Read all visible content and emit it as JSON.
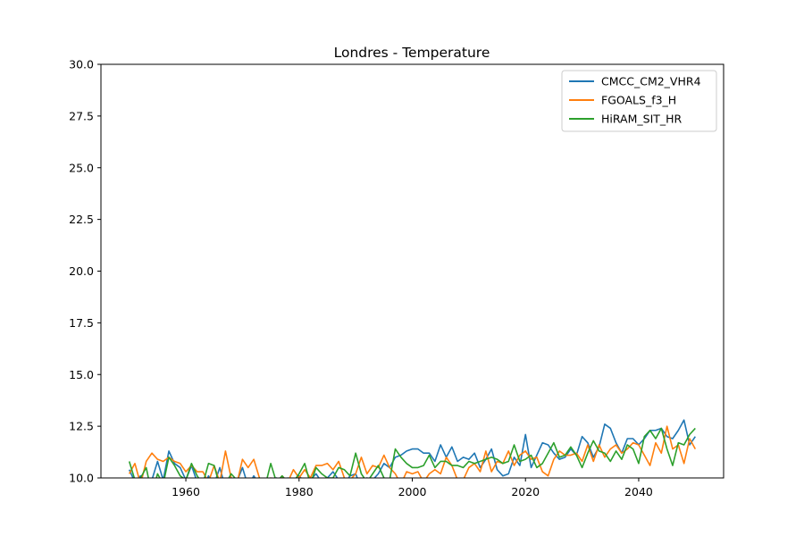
{
  "chart_data": {
    "type": "line",
    "title": "Londres - Temperature",
    "xlabel": "",
    "ylabel": "",
    "xlim": [
      1945,
      2055
    ],
    "ylim": [
      10.0,
      30.0
    ],
    "xticks": [
      1960,
      1980,
      2000,
      2020,
      2040
    ],
    "xtick_labels": [
      "1960",
      "1980",
      "2000",
      "2020",
      "2040"
    ],
    "yticks": [
      10.0,
      12.5,
      15.0,
      17.5,
      20.0,
      22.5,
      25.0,
      27.5,
      30.0
    ],
    "ytick_labels": [
      "10.0",
      "12.5",
      "15.0",
      "17.5",
      "20.0",
      "22.5",
      "25.0",
      "27.5",
      "30.0"
    ],
    "grid": false,
    "legend_position": "upper right",
    "x": [
      1950,
      1951,
      1952,
      1953,
      1954,
      1955,
      1956,
      1957,
      1958,
      1959,
      1960,
      1961,
      1962,
      1963,
      1964,
      1965,
      1966,
      1967,
      1968,
      1969,
      1970,
      1971,
      1972,
      1973,
      1974,
      1975,
      1976,
      1977,
      1978,
      1979,
      1980,
      1981,
      1982,
      1983,
      1984,
      1985,
      1986,
      1987,
      1988,
      1989,
      1990,
      1991,
      1992,
      1993,
      1994,
      1995,
      1996,
      1997,
      1998,
      1999,
      2000,
      2001,
      2002,
      2003,
      2004,
      2005,
      2006,
      2007,
      2008,
      2009,
      2010,
      2011,
      2012,
      2013,
      2014,
      2015,
      2016,
      2017,
      2018,
      2019,
      2020,
      2021,
      2022,
      2023,
      2024,
      2025,
      2026,
      2027,
      2028,
      2029,
      2030,
      2031,
      2032,
      2033,
      2034,
      2035,
      2036,
      2037,
      2038,
      2039,
      2040,
      2041,
      2042,
      2043,
      2044,
      2045,
      2046,
      2047,
      2048,
      2049,
      2050
    ],
    "series": [
      {
        "name": "CMCC_CM2_VHR4",
        "color": "#1f77b4",
        "values": [
          10.4,
          9.8,
          10.1,
          9.6,
          9.9,
          10.8,
          9.9,
          11.3,
          10.7,
          10.5,
          9.9,
          10.6,
          9.8,
          9.5,
          10.1,
          9.7,
          10.5,
          9.5,
          10.0,
          9.8,
          10.5,
          9.6,
          10.1,
          9.7,
          9.9,
          9.8,
          10.0,
          9.7,
          10.0,
          9.9,
          10.1,
          9.8,
          9.9,
          10.2,
          9.8,
          10.0,
          10.3,
          9.9,
          9.7,
          10.1,
          10.2,
          9.5,
          10.0,
          9.9,
          10.2,
          10.7,
          10.5,
          11.0,
          11.1,
          11.3,
          11.4,
          11.4,
          11.2,
          11.2,
          10.8,
          11.6,
          11.0,
          11.5,
          10.8,
          11.0,
          10.9,
          11.2,
          10.5,
          10.9,
          11.4,
          10.4,
          10.1,
          10.2,
          11.0,
          10.6,
          12.1,
          10.5,
          11.1,
          11.7,
          11.6,
          11.2,
          10.9,
          11.0,
          11.4,
          11.1,
          12.0,
          11.7,
          11.0,
          11.5,
          12.6,
          12.4,
          11.7,
          11.2,
          11.9,
          11.9,
          11.6,
          11.9,
          12.3,
          12.3,
          12.4,
          12.0,
          11.9,
          12.3,
          12.8,
          11.6,
          12.0
        ]
      },
      {
        "name": "FGOALS_f3_H",
        "color": "#ff7f0e",
        "values": [
          10.2,
          10.7,
          9.7,
          10.8,
          11.2,
          10.9,
          10.8,
          11.0,
          10.8,
          10.7,
          10.3,
          10.6,
          10.3,
          10.3,
          9.8,
          10.6,
          9.8,
          11.3,
          10.0,
          9.7,
          10.9,
          10.5,
          10.9,
          10.0,
          9.6,
          10.0,
          9.6,
          10.1,
          9.8,
          10.4,
          10.0,
          10.4,
          10.0,
          10.6,
          10.6,
          10.7,
          10.4,
          10.8,
          10.0,
          9.9,
          10.2,
          11.0,
          10.2,
          10.6,
          10.5,
          11.1,
          10.5,
          10.2,
          9.7,
          10.3,
          10.2,
          10.3,
          9.8,
          10.2,
          10.4,
          10.2,
          11.0,
          10.6,
          9.9,
          9.9,
          10.5,
          10.7,
          10.3,
          11.3,
          10.3,
          10.8,
          10.7,
          11.3,
          10.6,
          11.1,
          11.3,
          10.9,
          11.0,
          10.3,
          10.1,
          10.9,
          11.3,
          11.1,
          11.1,
          11.2,
          10.8,
          11.6,
          10.8,
          11.6,
          11.0,
          11.4,
          11.6,
          11.2,
          11.4,
          11.7,
          11.6,
          11.1,
          10.6,
          11.7,
          11.2,
          12.5,
          11.4,
          11.6,
          10.7,
          11.9,
          11.4
        ]
      },
      {
        "name": "HiRAM_SIT_HR",
        "color": "#2ca02c",
        "values": [
          10.8,
          9.9,
          10.0,
          10.5,
          9.2,
          10.2,
          9.7,
          11.0,
          10.6,
          10.1,
          9.9,
          10.7,
          10.1,
          9.7,
          10.7,
          10.6,
          9.6,
          9.7,
          10.2,
          9.9,
          9.8,
          9.7,
          9.9,
          10.0,
          9.6,
          10.7,
          9.8,
          10.1,
          9.8,
          9.8,
          10.2,
          10.7,
          9.7,
          10.5,
          10.2,
          10.0,
          10.0,
          10.5,
          10.4,
          10.1,
          11.2,
          10.2,
          9.8,
          10.2,
          10.6,
          10.0,
          9.9,
          11.4,
          11.0,
          10.7,
          10.5,
          10.5,
          10.6,
          11.1,
          10.5,
          10.8,
          10.8,
          10.6,
          10.6,
          10.5,
          10.8,
          10.7,
          10.8,
          10.9,
          11.0,
          10.9,
          10.7,
          10.8,
          11.6,
          10.8,
          10.9,
          11.1,
          10.5,
          10.7,
          11.2,
          11.7,
          11.0,
          11.1,
          11.5,
          11.1,
          10.5,
          11.2,
          11.8,
          11.3,
          11.2,
          10.8,
          11.3,
          10.9,
          11.6,
          11.4,
          10.7,
          12.0,
          12.3,
          11.9,
          12.4,
          11.4,
          10.6,
          11.7,
          11.6,
          12.1,
          12.4
        ]
      }
    ]
  }
}
